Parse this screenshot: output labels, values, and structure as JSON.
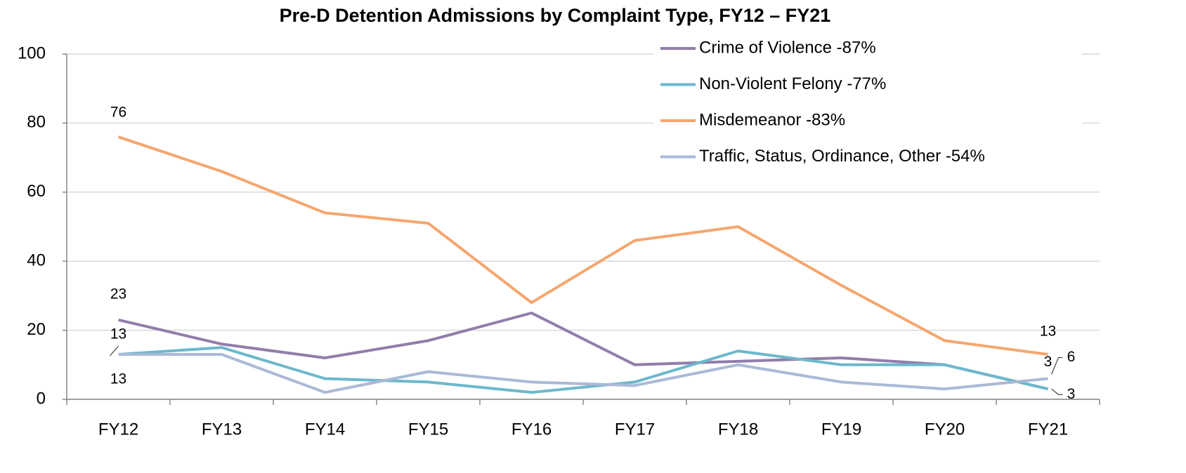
{
  "chart_data": {
    "type": "line",
    "title": "Pre-D Detention Admissions by Complaint Type, FY12 – FY21",
    "categories": [
      "FY12",
      "FY13",
      "FY14",
      "FY15",
      "FY16",
      "FY17",
      "FY18",
      "FY19",
      "FY20",
      "FY21"
    ],
    "series": [
      {
        "name": "Crime of Violence -87%",
        "color": "#917dab",
        "values": [
          23,
          16,
          12,
          17,
          25,
          10,
          11,
          12,
          10,
          3
        ]
      },
      {
        "name": "Non-Violent Felony -77%",
        "color": "#6db8cc",
        "values": [
          13,
          15,
          6,
          5,
          2,
          5,
          14,
          10,
          10,
          3
        ]
      },
      {
        "name": "Misdemeanor -83%",
        "color": "#f5a66f",
        "values": [
          76,
          66,
          54,
          51,
          28,
          46,
          50,
          33,
          17,
          13
        ]
      },
      {
        "name": "Traffic, Status, Ordinance, Other -54%",
        "color": "#aab9d6",
        "values": [
          13,
          13,
          2,
          8,
          5,
          4,
          10,
          5,
          3,
          6
        ]
      }
    ],
    "labeled_points": [
      0,
      9
    ],
    "ylim": [
      0,
      100
    ],
    "yticks": [
      0,
      20,
      40,
      60,
      80,
      100
    ],
    "grid": true,
    "legend": "upper right"
  }
}
